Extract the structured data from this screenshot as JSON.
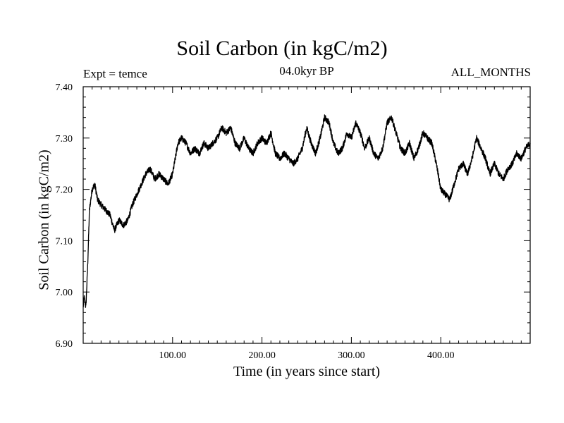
{
  "chart_data": {
    "type": "line",
    "title": "Soil Carbon (in kgC/m2)",
    "subtitle_left": "Expt = temce",
    "subtitle_center": "04.0kyr BP",
    "subtitle_right": "ALL_MONTHS",
    "xlabel": "Time (in years since start)",
    "ylabel": "Soil Carbon (in kgC/m2)",
    "xlim": [
      0,
      500
    ],
    "ylim": [
      6.9,
      7.4
    ],
    "xticks": [
      100,
      200,
      300,
      400
    ],
    "xtick_labels": [
      "100.00",
      "200.00",
      "300.00",
      "400.00"
    ],
    "yticks": [
      6.9,
      7.0,
      7.1,
      7.2,
      7.3,
      7.4
    ],
    "ytick_labels": [
      "6.90",
      "7.00",
      "7.10",
      "7.20",
      "7.30",
      "7.40"
    ],
    "series": [
      {
        "name": "Soil Carbon",
        "x": [
          0,
          1,
          3,
          5,
          7,
          10,
          13,
          16,
          20,
          25,
          30,
          35,
          40,
          45,
          50,
          55,
          60,
          65,
          70,
          75,
          80,
          85,
          90,
          95,
          100,
          103,
          106,
          110,
          115,
          120,
          125,
          130,
          135,
          140,
          145,
          150,
          155,
          160,
          165,
          170,
          175,
          180,
          185,
          190,
          195,
          200,
          205,
          210,
          215,
          220,
          225,
          230,
          235,
          240,
          245,
          250,
          255,
          260,
          265,
          270,
          275,
          280,
          285,
          290,
          295,
          300,
          305,
          310,
          315,
          320,
          325,
          330,
          335,
          340,
          345,
          350,
          355,
          360,
          365,
          370,
          375,
          380,
          385,
          390,
          395,
          400,
          405,
          410,
          415,
          420,
          425,
          430,
          435,
          440,
          445,
          450,
          455,
          460,
          465,
          470,
          475,
          480,
          485,
          490,
          495,
          500
        ],
        "values": [
          6.97,
          6.99,
          6.97,
          7.05,
          7.16,
          7.2,
          7.21,
          7.18,
          7.17,
          7.16,
          7.15,
          7.12,
          7.14,
          7.13,
          7.14,
          7.17,
          7.19,
          7.21,
          7.23,
          7.24,
          7.22,
          7.23,
          7.22,
          7.21,
          7.23,
          7.26,
          7.29,
          7.3,
          7.29,
          7.27,
          7.28,
          7.27,
          7.29,
          7.28,
          7.29,
          7.3,
          7.32,
          7.31,
          7.32,
          7.29,
          7.28,
          7.3,
          7.28,
          7.27,
          7.29,
          7.3,
          7.29,
          7.31,
          7.27,
          7.26,
          7.27,
          7.26,
          7.25,
          7.26,
          7.28,
          7.32,
          7.29,
          7.27,
          7.3,
          7.34,
          7.33,
          7.29,
          7.27,
          7.28,
          7.31,
          7.3,
          7.33,
          7.31,
          7.28,
          7.3,
          7.27,
          7.26,
          7.28,
          7.33,
          7.34,
          7.31,
          7.28,
          7.27,
          7.29,
          7.26,
          7.28,
          7.31,
          7.3,
          7.29,
          7.25,
          7.2,
          7.19,
          7.18,
          7.21,
          7.24,
          7.25,
          7.23,
          7.26,
          7.3,
          7.28,
          7.26,
          7.23,
          7.25,
          7.23,
          7.22,
          7.24,
          7.25,
          7.27,
          7.26,
          7.28,
          7.29
        ]
      }
    ]
  }
}
